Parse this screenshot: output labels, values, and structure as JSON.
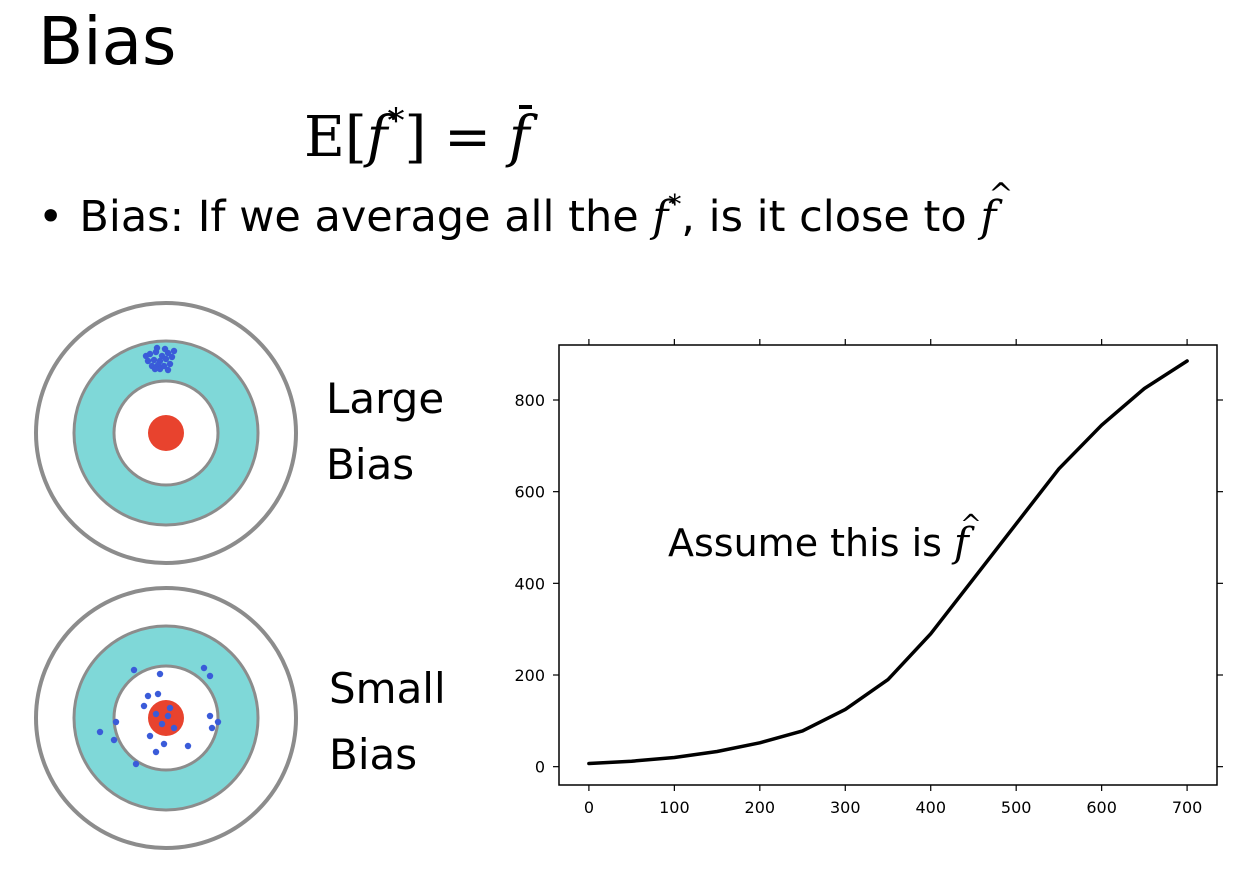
{
  "slide": {
    "title": "Bias",
    "formula": {
      "lhs_open": "E[",
      "f": "f",
      "star": "*",
      "lhs_close": "] = ",
      "rhs": "f"
    },
    "bullet": {
      "marker": "•",
      "text_before": "Bias: If we average all the ",
      "f": "f",
      "star": "*",
      "text_after": ", is it close to ",
      "fhat": "f"
    }
  },
  "targets": [
    {
      "label": "Large\nBias",
      "spread": "tight",
      "cluster": "top"
    },
    {
      "label": "Small\nBias",
      "spread": "wide",
      "cluster": "center"
    }
  ],
  "colors": {
    "ring": "#8c8c8c",
    "cyan": "#7fd8d8",
    "bullseye": "#e8432e",
    "dots": "#3a5bd9",
    "line": "#000000"
  },
  "annotation": {
    "text": "Assume this is ",
    "fhat": "f"
  },
  "chart_data": {
    "type": "line",
    "title": "",
    "xlabel": "",
    "ylabel": "",
    "xlim": [
      -35,
      735
    ],
    "ylim": [
      -40,
      920
    ],
    "xticks": [
      0,
      100,
      200,
      300,
      400,
      500,
      600,
      700
    ],
    "yticks": [
      0,
      200,
      400,
      600,
      800
    ],
    "grid": false,
    "series": [
      {
        "x": [
          0,
          50,
          100,
          150,
          200,
          250,
          300,
          350,
          400,
          450,
          500,
          550,
          600,
          650,
          700
        ],
        "y": [
          7,
          12,
          20,
          33,
          52,
          78,
          125,
          190,
          290,
          410,
          530,
          650,
          745,
          825,
          885
        ]
      }
    ]
  }
}
